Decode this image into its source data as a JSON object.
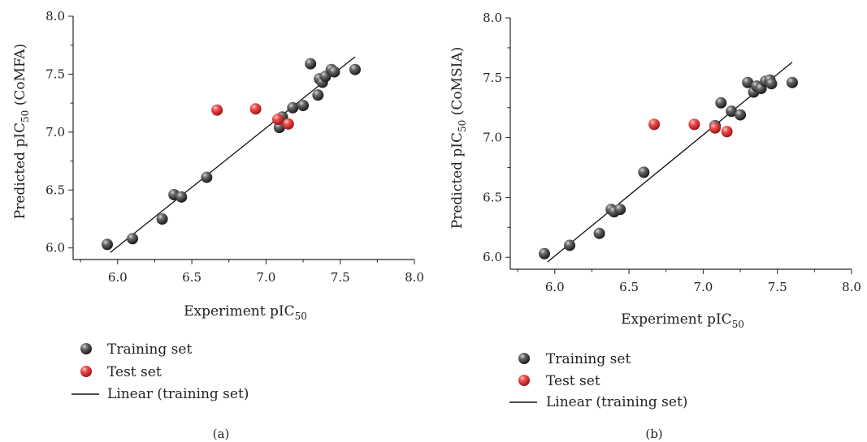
{
  "chart_data": [
    {
      "panel_label": "(a)",
      "type": "scatter",
      "ylabel": "Predicted pIC50 (CoMFA)",
      "ylabel_parts": {
        "pre": "Predicted pIC",
        "sub": "50",
        "post": " (CoMFA)"
      },
      "xlabel": "Experiment pIC50",
      "xlabel_parts": {
        "pre": "Experiment pIC",
        "sub": "50",
        "post": ""
      },
      "xlim": [
        5.7,
        8.0
      ],
      "ylim": [
        5.9,
        8.0
      ],
      "xticks": [
        "6.0",
        "6.5",
        "7.0",
        "7.5",
        "8.0"
      ],
      "yticks": [
        "6.0",
        "6.5",
        "7.0",
        "7.5",
        "8.0"
      ],
      "legend_position": "below",
      "series": [
        {
          "name": "Training set",
          "color": "#4a4a4a",
          "points": [
            [
              5.93,
              6.03
            ],
            [
              6.1,
              6.08
            ],
            [
              6.3,
              6.25
            ],
            [
              6.38,
              6.46
            ],
            [
              6.43,
              6.44
            ],
            [
              6.6,
              6.61
            ],
            [
              7.09,
              7.04
            ],
            [
              7.11,
              7.13
            ],
            [
              7.18,
              7.21
            ],
            [
              7.25,
              7.23
            ],
            [
              7.3,
              7.59
            ],
            [
              7.35,
              7.32
            ],
            [
              7.36,
              7.46
            ],
            [
              7.38,
              7.43
            ],
            [
              7.4,
              7.48
            ],
            [
              7.44,
              7.54
            ],
            [
              7.46,
              7.52
            ],
            [
              7.6,
              7.54
            ]
          ]
        },
        {
          "name": "Test set",
          "color": "#e23a3a",
          "points": [
            [
              6.67,
              7.19
            ],
            [
              6.93,
              7.2
            ],
            [
              7.08,
              7.11
            ],
            [
              7.15,
              7.07
            ]
          ]
        }
      ],
      "fit": {
        "name": "Linear (training set)",
        "color": "#111111",
        "x": [
          5.95,
          7.6
        ],
        "y": [
          5.96,
          7.65
        ]
      }
    },
    {
      "panel_label": "(b)",
      "type": "scatter",
      "ylabel": "Predicted pIC50 (CoMSIA)",
      "ylabel_parts": {
        "pre": "Predicted pIC",
        "sub": "50",
        "post": " (CoMSIA)"
      },
      "xlabel": "Experiment pIC50",
      "xlabel_parts": {
        "pre": "Experiment pIC",
        "sub": "50",
        "post": ""
      },
      "xlim": [
        5.7,
        8.0
      ],
      "ylim": [
        5.9,
        8.0
      ],
      "xticks": [
        "6.0",
        "6.5",
        "7.0",
        "7.5",
        "8.0"
      ],
      "yticks": [
        "6.0",
        "6.5",
        "7.0",
        "7.5",
        "8.0"
      ],
      "legend_position": "below",
      "series": [
        {
          "name": "Training set",
          "color": "#4a4a4a",
          "points": [
            [
              5.93,
              6.03
            ],
            [
              6.1,
              6.1
            ],
            [
              6.3,
              6.2
            ],
            [
              6.38,
              6.4
            ],
            [
              6.4,
              6.38
            ],
            [
              6.44,
              6.4
            ],
            [
              6.6,
              6.71
            ],
            [
              7.08,
              7.1
            ],
            [
              7.12,
              7.29
            ],
            [
              7.19,
              7.22
            ],
            [
              7.25,
              7.19
            ],
            [
              7.3,
              7.46
            ],
            [
              7.34,
              7.38
            ],
            [
              7.36,
              7.43
            ],
            [
              7.39,
              7.41
            ],
            [
              7.42,
              7.47
            ],
            [
              7.45,
              7.48
            ],
            [
              7.46,
              7.45
            ],
            [
              7.6,
              7.46
            ]
          ]
        },
        {
          "name": "Test set",
          "color": "#e23a3a",
          "points": [
            [
              6.67,
              7.11
            ],
            [
              6.94,
              7.11
            ],
            [
              7.08,
              7.08
            ],
            [
              7.16,
              7.05
            ]
          ]
        }
      ],
      "fit": {
        "name": "Linear (training set)",
        "color": "#111111",
        "x": [
          5.95,
          7.6
        ],
        "y": [
          5.96,
          7.63
        ]
      }
    }
  ]
}
